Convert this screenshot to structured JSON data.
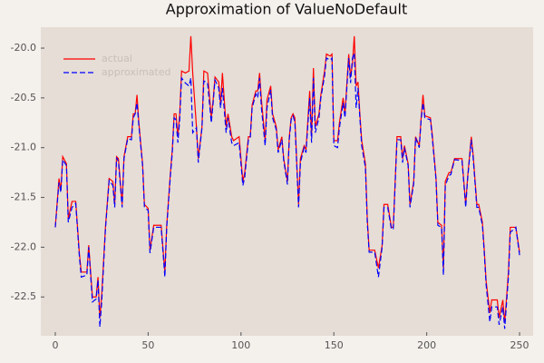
{
  "chart_data": {
    "type": "line",
    "title": "Approximation of ValueNoDefault",
    "x": [
      0,
      2,
      3,
      4,
      6,
      7,
      9,
      11,
      13,
      14,
      17,
      18,
      20,
      22,
      23,
      24,
      25,
      27,
      29,
      31,
      32,
      33,
      34,
      36,
      37,
      39,
      41,
      42,
      43,
      44,
      45,
      47,
      48,
      50,
      51,
      53,
      57,
      59,
      60,
      62,
      63,
      64,
      65,
      66,
      67,
      68,
      70,
      72,
      73,
      74,
      76,
      77,
      79,
      80,
      82,
      84,
      85,
      86,
      88,
      89,
      90,
      92,
      93,
      95,
      96,
      99,
      101,
      102,
      104,
      105,
      106,
      108,
      109,
      110,
      111,
      113,
      114,
      116,
      117,
      119,
      120,
      122,
      123,
      125,
      126,
      127,
      128,
      129,
      131,
      132,
      134,
      135,
      137,
      138,
      139,
      140,
      142,
      143,
      145,
      146,
      148,
      149,
      150,
      152,
      153,
      155,
      156,
      158,
      159,
      160,
      161,
      162,
      163,
      164,
      165,
      167,
      168,
      169,
      172,
      174,
      176,
      177,
      179,
      181,
      182,
      184,
      186,
      187,
      188,
      190,
      191,
      193,
      194,
      196,
      197,
      198,
      199,
      202,
      203,
      205,
      206,
      208,
      209,
      210,
      212,
      213,
      215,
      219,
      221,
      222,
      224,
      225,
      227,
      228,
      230,
      231,
      232,
      234,
      235,
      238,
      239,
      241,
      242,
      244,
      245,
      247,
      248,
      250
    ],
    "series": [
      {
        "name": "actual",
        "color": "#ff0000",
        "linestyle": "solid",
        "values": [
          -21.8,
          -21.31,
          -21.43,
          -21.09,
          -21.16,
          -21.71,
          -21.54,
          -21.54,
          -22.07,
          -22.25,
          -22.25,
          -21.98,
          -22.5,
          -22.5,
          -22.3,
          -22.71,
          -22.48,
          -21.8,
          -21.31,
          -21.34,
          -21.57,
          -21.09,
          -21.11,
          -21.57,
          -21.09,
          -20.89,
          -20.89,
          -20.66,
          -20.66,
          -20.47,
          -20.75,
          -21.16,
          -21.57,
          -21.61,
          -22.03,
          -21.78,
          -21.78,
          -22.25,
          -21.78,
          -21.25,
          -21.02,
          -20.66,
          -20.66,
          -20.89,
          -20.66,
          -20.23,
          -20.25,
          -20.23,
          -19.88,
          -20.25,
          -20.79,
          -21.11,
          -20.79,
          -20.23,
          -20.25,
          -20.7,
          -20.52,
          -20.29,
          -20.34,
          -20.57,
          -20.25,
          -20.79,
          -20.66,
          -20.89,
          -20.93,
          -20.89,
          -21.34,
          -21.25,
          -20.89,
          -20.89,
          -20.57,
          -20.43,
          -20.43,
          -20.25,
          -20.52,
          -20.93,
          -20.52,
          -20.38,
          -20.66,
          -20.79,
          -21.02,
          -20.89,
          -21.11,
          -21.34,
          -20.89,
          -20.7,
          -20.66,
          -20.7,
          -21.57,
          -21.11,
          -20.98,
          -21.02,
          -20.43,
          -20.89,
          -20.2,
          -20.79,
          -20.66,
          -20.47,
          -20.23,
          -20.06,
          -20.08,
          -20.06,
          -20.93,
          -20.93,
          -20.75,
          -20.5,
          -20.66,
          -20.06,
          -20.29,
          -20.16,
          -19.88,
          -20.38,
          -20.34,
          -20.66,
          -20.93,
          -21.16,
          -21.71,
          -22.03,
          -22.03,
          -22.21,
          -21.98,
          -21.57,
          -21.57,
          -21.8,
          -21.8,
          -20.89,
          -20.89,
          -21.11,
          -20.98,
          -21.16,
          -21.57,
          -21.34,
          -20.89,
          -20.98,
          -20.7,
          -20.47,
          -20.68,
          -20.7,
          -20.87,
          -21.3,
          -21.75,
          -21.78,
          -22.21,
          -21.34,
          -21.25,
          -21.25,
          -21.11,
          -21.11,
          -21.57,
          -21.3,
          -20.89,
          -21.07,
          -21.57,
          -21.57,
          -21.75,
          -22.03,
          -22.34,
          -22.66,
          -22.53,
          -22.53,
          -22.71,
          -22.53,
          -22.76,
          -22.25,
          -21.8,
          -21.8,
          -21.8,
          -22.05
        ]
      },
      {
        "name": "approximated",
        "color": "#0000ff",
        "linestyle": "dashed",
        "values": [
          -21.8,
          -21.35,
          -21.45,
          -21.12,
          -21.18,
          -21.75,
          -21.6,
          -21.56,
          -22.1,
          -22.3,
          -22.28,
          -22.0,
          -22.55,
          -22.52,
          -22.33,
          -22.8,
          -22.55,
          -21.82,
          -21.33,
          -21.38,
          -21.6,
          -21.1,
          -21.14,
          -21.6,
          -21.11,
          -20.91,
          -20.92,
          -20.7,
          -20.66,
          -20.55,
          -20.78,
          -21.18,
          -21.6,
          -21.63,
          -22.06,
          -21.8,
          -21.8,
          -22.3,
          -21.8,
          -21.28,
          -21.05,
          -20.7,
          -20.72,
          -20.95,
          -20.72,
          -20.3,
          -20.35,
          -20.38,
          -20.3,
          -20.85,
          -20.8,
          -21.15,
          -20.8,
          -20.33,
          -20.35,
          -20.75,
          -20.55,
          -20.32,
          -20.4,
          -20.6,
          -20.4,
          -20.85,
          -20.7,
          -20.95,
          -20.98,
          -20.95,
          -21.38,
          -21.3,
          -20.92,
          -20.9,
          -20.6,
          -20.46,
          -20.5,
          -20.3,
          -20.6,
          -20.98,
          -20.6,
          -20.42,
          -20.7,
          -20.82,
          -21.05,
          -20.92,
          -21.13,
          -21.37,
          -20.92,
          -20.72,
          -20.68,
          -20.74,
          -21.6,
          -21.15,
          -21.0,
          -21.05,
          -20.5,
          -20.95,
          -20.3,
          -20.85,
          -20.7,
          -20.5,
          -20.28,
          -20.1,
          -20.12,
          -20.1,
          -20.98,
          -21.0,
          -20.8,
          -20.55,
          -20.7,
          -20.1,
          -20.35,
          -20.1,
          -20.05,
          -20.6,
          -20.4,
          -20.7,
          -20.98,
          -21.2,
          -21.75,
          -22.05,
          -22.05,
          -22.3,
          -22.0,
          -21.6,
          -21.6,
          -21.82,
          -21.82,
          -20.92,
          -20.92,
          -21.15,
          -21.0,
          -21.18,
          -21.6,
          -21.36,
          -20.9,
          -21.0,
          -20.72,
          -20.55,
          -20.7,
          -20.72,
          -20.9,
          -21.32,
          -21.78,
          -21.8,
          -22.28,
          -21.38,
          -21.28,
          -21.27,
          -21.12,
          -21.13,
          -21.6,
          -21.32,
          -20.92,
          -21.1,
          -21.6,
          -21.6,
          -21.78,
          -22.06,
          -22.38,
          -22.75,
          -22.6,
          -22.6,
          -22.78,
          -22.6,
          -22.82,
          -22.3,
          -21.85,
          -21.82,
          -21.8,
          -22.08
        ]
      }
    ],
    "xlim": [
      -7.8,
      257.3
    ],
    "ylim": [
      -22.89,
      -19.79
    ],
    "xticks": [
      0,
      50,
      100,
      150,
      200,
      250
    ],
    "yticks": [
      {
        "value": -20,
        "label": "-20.0"
      },
      -20.5,
      {
        "value": -21,
        "label": "-21.0"
      },
      -21.5,
      {
        "value": -22,
        "label": "-22.0"
      },
      -22.5
    ],
    "grid": false,
    "legend": "upper left"
  }
}
